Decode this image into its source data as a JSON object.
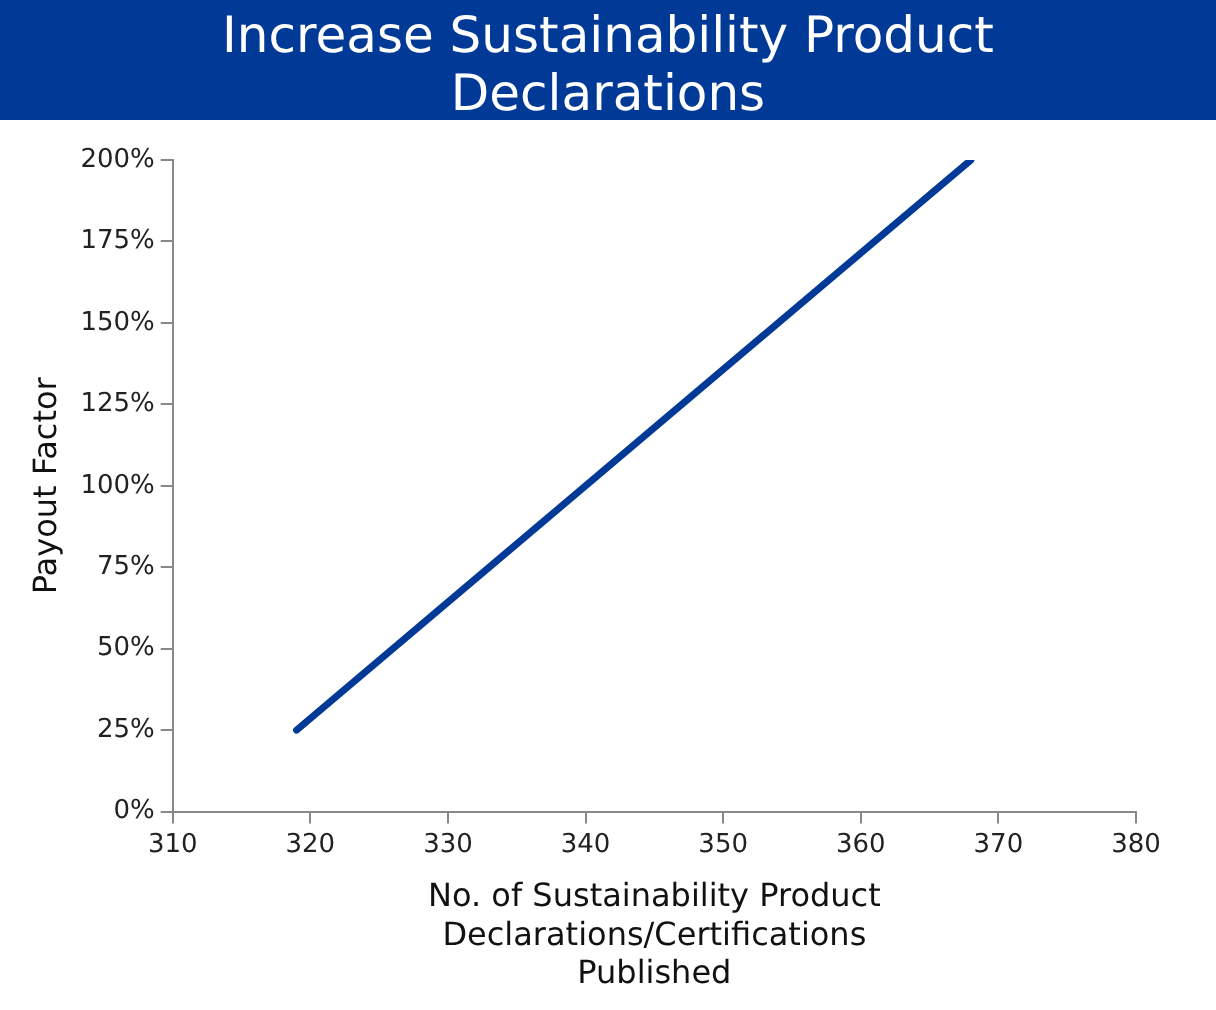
{
  "chart_data": {
    "type": "line",
    "title": "Increase Sustainability Product Declarations",
    "xlabel": "No. of Sustainability Product Declarations/Certifications Published",
    "ylabel": "Payout Factor",
    "x": [
      319,
      368
    ],
    "series": [
      {
        "color": "#003a96",
        "values": [
          25,
          200
        ]
      }
    ],
    "xlim": [
      310,
      380
    ],
    "xticks": [
      310,
      320,
      330,
      340,
      350,
      360,
      370,
      380
    ],
    "ylim": [
      0,
      200
    ],
    "yticks": [
      {
        "value": 0,
        "label": "0%"
      },
      {
        "value": 25,
        "label": "25%"
      },
      {
        "value": 50,
        "label": "50%"
      },
      {
        "value": 75,
        "label": "75%"
      },
      {
        "value": 100,
        "label": "100%"
      },
      {
        "value": 125,
        "label": "125%"
      },
      {
        "value": 150,
        "label": "150%"
      },
      {
        "value": 175,
        "label": "175%"
      },
      {
        "value": 200,
        "label": "200%"
      }
    ],
    "grid": false,
    "legend": false,
    "marker": "none",
    "line_style": "solid"
  }
}
